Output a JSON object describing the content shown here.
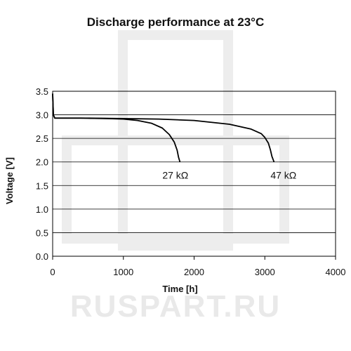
{
  "watermark": "RUSPART.RU",
  "chart_data": {
    "type": "line",
    "title": "Discharge performance at 23°C",
    "xlabel": "Time [h]",
    "ylabel": "Voltage [V]",
    "xlim": [
      0,
      4000
    ],
    "ylim": [
      0.0,
      3.5
    ],
    "xticks": [
      "0",
      "1000",
      "2000",
      "3000",
      "4000"
    ],
    "yticks": [
      "0.0",
      "0.5",
      "1.0",
      "1.5",
      "2.0",
      "2.5",
      "3.0",
      "3.5"
    ],
    "grid": "horizontal",
    "series": [
      {
        "name": "27 kΩ",
        "x": [
          0,
          10,
          30,
          100,
          400,
          800,
          1000,
          1200,
          1400,
          1550,
          1650,
          1720,
          1760,
          1780,
          1800
        ],
        "y": [
          3.45,
          3.0,
          2.93,
          2.93,
          2.93,
          2.92,
          2.91,
          2.88,
          2.82,
          2.72,
          2.58,
          2.42,
          2.25,
          2.1,
          2.0
        ]
      },
      {
        "name": "47 kΩ",
        "x": [
          0,
          10,
          30,
          100,
          500,
          1000,
          1500,
          2000,
          2500,
          2800,
          2950,
          3000,
          3050,
          3080,
          3100,
          3130
        ],
        "y": [
          3.45,
          3.0,
          2.93,
          2.93,
          2.93,
          2.92,
          2.91,
          2.88,
          2.8,
          2.7,
          2.6,
          2.52,
          2.4,
          2.25,
          2.12,
          2.0
        ]
      }
    ]
  }
}
